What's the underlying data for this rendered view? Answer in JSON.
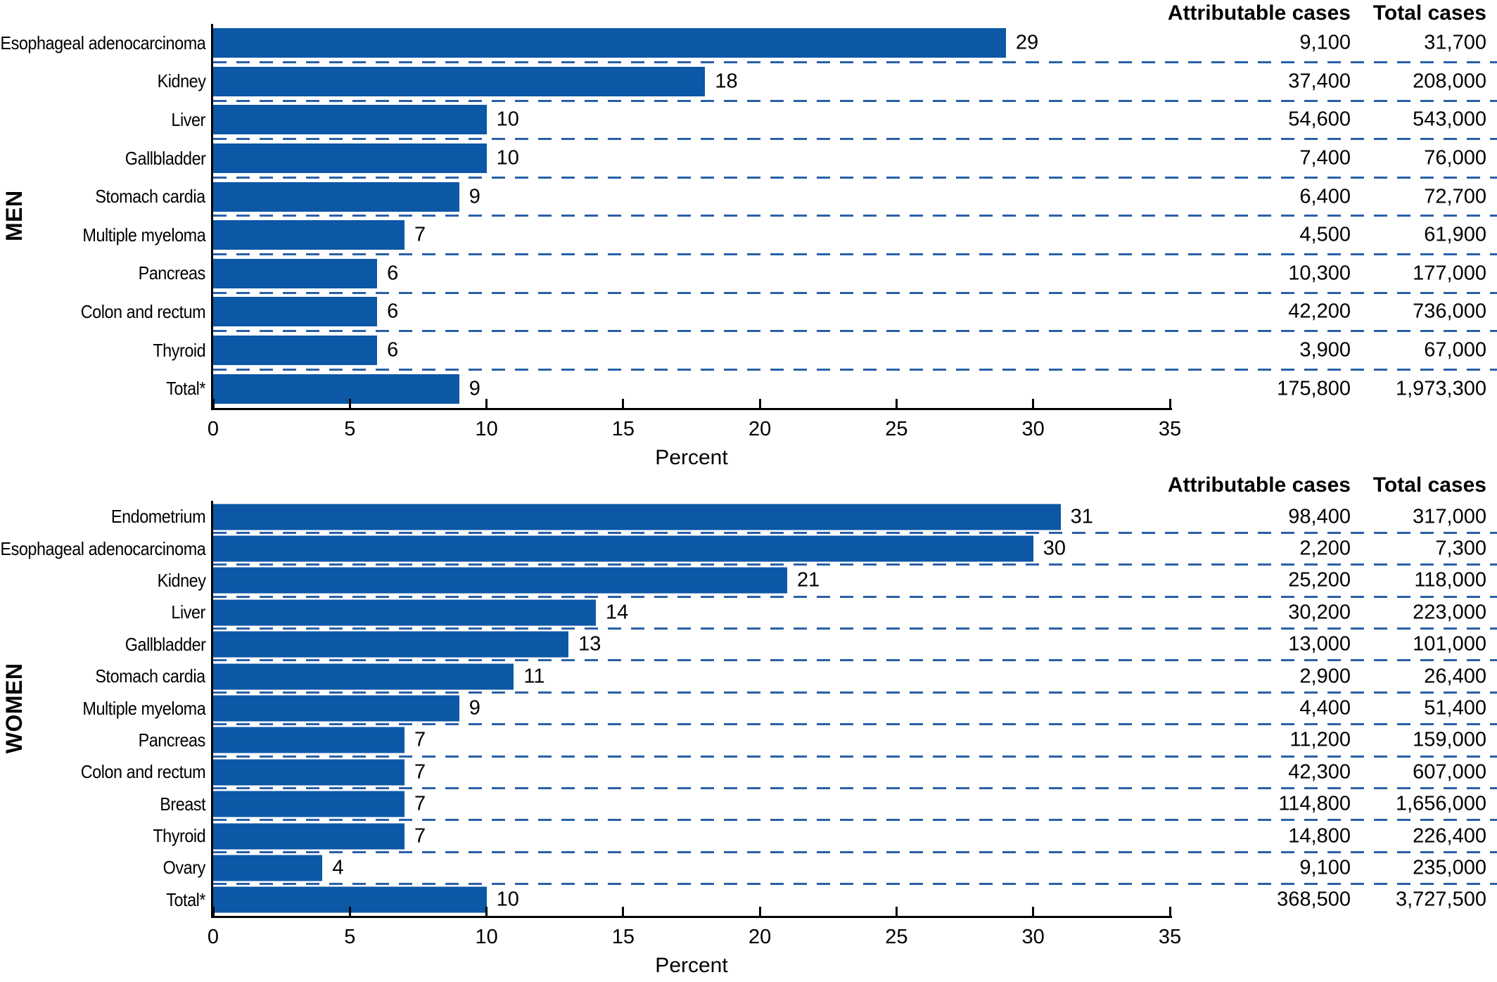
{
  "columns": {
    "attributable": "Attributable cases",
    "total": "Total cases"
  },
  "colors": {
    "bar": "#0c57a6",
    "dash": "#2a60a8",
    "axis": "#000000",
    "text": "#000000"
  },
  "chart_data": [
    {
      "type": "bar",
      "group": "MEN",
      "orientation": "horizontal",
      "xlabel": "Percent",
      "xlim": [
        0,
        35
      ],
      "xticks": [
        0,
        5,
        10,
        15,
        20,
        25,
        30,
        35
      ],
      "grid": "dashed-row-separators",
      "categories": [
        "Esophageal adenocarcinoma",
        "Kidney",
        "Liver",
        "Gallbladder",
        "Stomach cardia",
        "Multiple myeloma",
        "Pancreas",
        "Colon and rectum",
        "Thyroid",
        "Total*"
      ],
      "values": [
        29,
        18,
        10,
        10,
        9,
        7,
        6,
        6,
        6,
        9
      ],
      "attributable_cases": [
        "9,100",
        "37,400",
        "54,600",
        "7,400",
        "6,400",
        "4,500",
        "10,300",
        "42,200",
        "3,900",
        "175,800"
      ],
      "total_cases": [
        "31,700",
        "208,000",
        "543,000",
        "76,000",
        "72,700",
        "61,900",
        "177,000",
        "736,000",
        "67,000",
        "1,973,300"
      ]
    },
    {
      "type": "bar",
      "group": "WOMEN",
      "orientation": "horizontal",
      "xlabel": "Percent",
      "xlim": [
        0,
        35
      ],
      "xticks": [
        0,
        5,
        10,
        15,
        20,
        25,
        30,
        35
      ],
      "grid": "dashed-row-separators",
      "categories": [
        "Endometrium",
        "Esophageal adenocarcinoma",
        "Kidney",
        "Liver",
        "Gallbladder",
        "Stomach cardia",
        "Multiple myeloma",
        "Pancreas",
        "Colon and rectum",
        "Breast",
        "Thyroid",
        "Ovary",
        "Total*"
      ],
      "values": [
        31,
        30,
        21,
        14,
        13,
        11,
        9,
        7,
        7,
        7,
        7,
        4,
        10
      ],
      "attributable_cases": [
        "98,400",
        "2,200",
        "25,200",
        "30,200",
        "13,000",
        "2,900",
        "4,400",
        "11,200",
        "42,300",
        "114,800",
        "14,800",
        "9,100",
        "368,500"
      ],
      "total_cases": [
        "317,000",
        "7,300",
        "118,000",
        "223,000",
        "101,000",
        "26,400",
        "51,400",
        "159,000",
        "607,000",
        "1,656,000",
        "226,400",
        "235,000",
        "3,727,500"
      ]
    }
  ]
}
